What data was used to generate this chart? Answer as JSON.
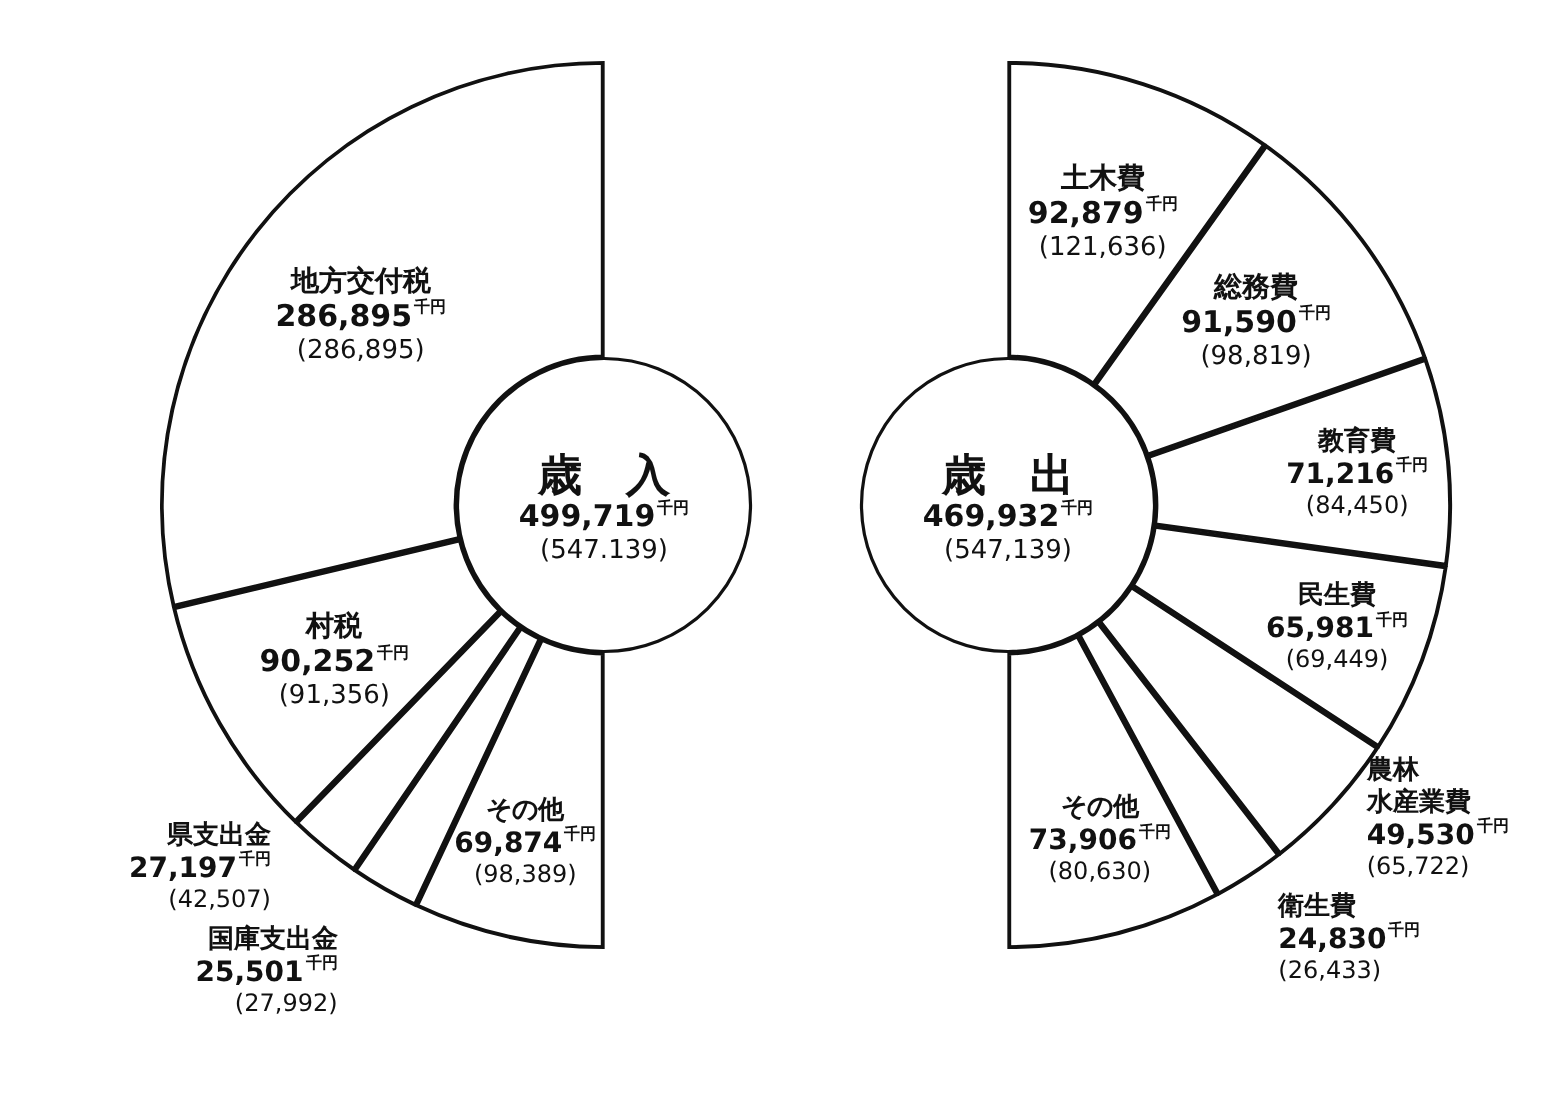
{
  "chart_data": [
    {
      "type": "donut",
      "title": "歳　入",
      "categories": [
        "その他",
        "国庫支出金",
        "県支出金",
        "村税",
        "地方交付税"
      ],
      "values": [
        69874,
        25501,
        27197,
        90252,
        286895
      ],
      "colors": [
        "#ffffff",
        "#ffffff",
        "#ffffff",
        "#ffffff",
        "#ffffff"
      ],
      "value_labels": [
        "69,874$^{千円}$",
        "25,501$^{千円}$",
        "27,197$^{千円}$",
        "90,252$^{千円}$",
        "286,895$^{千円}$"
      ],
      "annotations": [
        "499,719$^{千円}$",
        "(547.139)",
        {
          "text": "(98,389)",
          "x": "その他"
        },
        {
          "text": "(27,992)",
          "x": "国庫支出金"
        },
        {
          "text": "(42,507)",
          "x": "県支出金"
        },
        {
          "text": "(91,356)",
          "x": "村税"
        },
        {
          "text": "(286,895)",
          "x": "地方交付税"
        }
      ]
    },
    {
      "type": "donut",
      "title": "歳　出",
      "categories": [
        "土木費",
        "総務費",
        "教育費",
        "民生費",
        "農林水産業費",
        "衛生費",
        "その他"
      ],
      "values": [
        92879,
        91590,
        71216,
        65981,
        49530,
        24830,
        73906
      ],
      "colors": [
        "#ffffff",
        "#ffffff",
        "#ffffff",
        "#ffffff",
        "#ffffff",
        "#ffffff",
        "#ffffff"
      ],
      "value_labels": [
        "92,879$^{千円}$",
        "91,590$^{千円}$",
        "71,216$^{千円}$",
        "65,981$^{千円}$",
        "49,530$^{千円}$",
        "24,830$^{千円}$",
        "73,906$^{千円}$"
      ],
      "annotations": [
        "469,932$^{千円}$",
        "(547,139)",
        {
          "text": "(121,636)",
          "x": "土木費"
        },
        {
          "text": "(98,819)",
          "x": "総務費"
        },
        {
          "text": "(84,450)",
          "x": "教育費"
        },
        {
          "text": "(69,449)",
          "x": "民生費"
        },
        {
          "text": "(65,722)",
          "x": "農林水産業費"
        },
        {
          "text": "(26,433)",
          "x": "衛生費"
        },
        {
          "text": "(80,630)",
          "x": "その他"
        }
      ]
    }
  ]
}
